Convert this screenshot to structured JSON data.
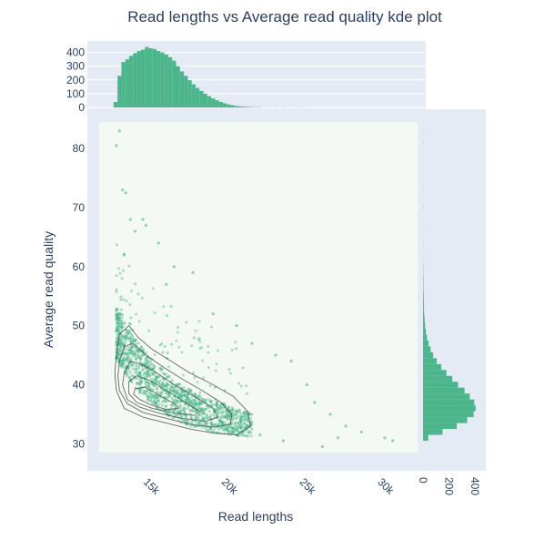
{
  "chart_data": {
    "type": "scatter",
    "title": "Read lengths vs Average read quality kde plot",
    "xlabel": "Read lengths",
    "ylabel": "Average read quality",
    "xlim": [
      12200,
      32600
    ],
    "ylim": [
      28.5,
      84.5
    ],
    "x_ticks": [
      15000,
      20000,
      25000,
      30000
    ],
    "x_tick_labels": [
      "15k",
      "20k",
      "25k",
      "30k"
    ],
    "y_ticks": [
      30,
      40,
      50,
      60,
      70,
      80
    ],
    "y_tick_labels": [
      "30",
      "40",
      "50",
      "60",
      "70",
      "80"
    ],
    "top_histogram": {
      "ylim": [
        0,
        470
      ],
      "ticks": [
        0,
        100,
        200,
        300,
        400
      ],
      "tick_labels": [
        "0",
        "100",
        "200",
        "300",
        "400"
      ],
      "bins": [
        [
          13250,
          40
        ],
        [
          13500,
          230
        ],
        [
          13750,
          330
        ],
        [
          14000,
          350
        ],
        [
          14250,
          375
        ],
        [
          14500,
          395
        ],
        [
          14750,
          410
        ],
        [
          15000,
          420
        ],
        [
          15250,
          440
        ],
        [
          15500,
          430
        ],
        [
          15750,
          425
        ],
        [
          16000,
          410
        ],
        [
          16250,
          400
        ],
        [
          16500,
          385
        ],
        [
          16750,
          365
        ],
        [
          17000,
          340
        ],
        [
          17250,
          300
        ],
        [
          17500,
          262
        ],
        [
          17750,
          230
        ],
        [
          18000,
          198
        ],
        [
          18250,
          168
        ],
        [
          18500,
          142
        ],
        [
          18750,
          120
        ],
        [
          19000,
          100
        ],
        [
          19250,
          82
        ],
        [
          19500,
          66
        ],
        [
          19750,
          52
        ],
        [
          20000,
          40
        ],
        [
          20250,
          30
        ],
        [
          20500,
          22
        ],
        [
          20750,
          16
        ],
        [
          21000,
          11
        ],
        [
          21250,
          8
        ],
        [
          21500,
          6
        ],
        [
          21750,
          4
        ],
        [
          22000,
          3
        ],
        [
          22250,
          2
        ],
        [
          22500,
          2
        ],
        [
          23000,
          1
        ],
        [
          23500,
          1
        ],
        [
          24000,
          1
        ],
        [
          25000,
          1
        ]
      ]
    },
    "right_histogram": {
      "xlim": [
        0,
        470
      ],
      "ticks": [
        0,
        200,
        400
      ],
      "tick_labels": [
        "0",
        "200",
        "400"
      ],
      "bins": [
        [
          31,
          40
        ],
        [
          32,
          150
        ],
        [
          33,
          260
        ],
        [
          34,
          340
        ],
        [
          35,
          390
        ],
        [
          36,
          405
        ],
        [
          37,
          395
        ],
        [
          38,
          360
        ],
        [
          39,
          320
        ],
        [
          40,
          270
        ],
        [
          41,
          225
        ],
        [
          42,
          180
        ],
        [
          43,
          140
        ],
        [
          44,
          105
        ],
        [
          45,
          78
        ],
        [
          46,
          58
        ],
        [
          47,
          42
        ],
        [
          48,
          30
        ],
        [
          49,
          22
        ],
        [
          50,
          16
        ],
        [
          51,
          12
        ],
        [
          52,
          9
        ],
        [
          53,
          7
        ],
        [
          54,
          6
        ],
        [
          55,
          5
        ],
        [
          56,
          4
        ],
        [
          57,
          3
        ],
        [
          58,
          3
        ],
        [
          59,
          2
        ],
        [
          60,
          2
        ],
        [
          62,
          1
        ],
        [
          64,
          1
        ],
        [
          67,
          1
        ],
        [
          70,
          1
        ],
        [
          74,
          1
        ],
        [
          81,
          1
        ],
        [
          83,
          1
        ]
      ]
    },
    "scatter_outliers": [
      [
        13500,
        83
      ],
      [
        13300,
        80.5
      ],
      [
        13700,
        73
      ],
      [
        13900,
        72.5
      ],
      [
        14200,
        68
      ],
      [
        15000,
        68
      ],
      [
        15200,
        67
      ],
      [
        14500,
        66
      ],
      [
        16000,
        64
      ],
      [
        13800,
        62
      ],
      [
        17000,
        60
      ],
      [
        18200,
        59
      ],
      [
        16500,
        57
      ],
      [
        19500,
        52
      ],
      [
        21000,
        50
      ],
      [
        22000,
        47
      ],
      [
        23500,
        45
      ],
      [
        24500,
        44
      ],
      [
        25500,
        40
      ],
      [
        26000,
        37
      ],
      [
        27000,
        35
      ],
      [
        28000,
        33
      ],
      [
        29000,
        32
      ],
      [
        30500,
        31
      ],
      [
        26500,
        29.5
      ],
      [
        24000,
        30.5
      ],
      [
        22500,
        31.5
      ],
      [
        20500,
        33
      ],
      [
        31000,
        30.5
      ],
      [
        27500,
        31
      ]
    ],
    "kde_contours": [
      [
        [
          13300,
          45
        ],
        [
          13500,
          48.5
        ],
        [
          14100,
          50
        ],
        [
          14700,
          48
        ],
        [
          15600,
          46
        ],
        [
          16800,
          44
        ],
        [
          18000,
          42
        ],
        [
          19500,
          40
        ],
        [
          20800,
          38
        ],
        [
          21700,
          35.5
        ],
        [
          21900,
          33
        ],
        [
          21000,
          31.5
        ],
        [
          19500,
          31.8
        ],
        [
          18000,
          32.5
        ],
        [
          16500,
          33.5
        ],
        [
          15000,
          34.5
        ],
        [
          13800,
          36
        ],
        [
          13300,
          39
        ],
        [
          13200,
          42
        ]
      ],
      [
        [
          13500,
          44
        ],
        [
          13800,
          46.5
        ],
        [
          14400,
          47
        ],
        [
          15200,
          45
        ],
        [
          16300,
          43
        ],
        [
          17500,
          41
        ],
        [
          18800,
          39
        ],
        [
          20000,
          37
        ],
        [
          20700,
          35
        ],
        [
          20600,
          33.3
        ],
        [
          19500,
          32.8
        ],
        [
          18000,
          33.3
        ],
        [
          16500,
          34.3
        ],
        [
          15000,
          35.3
        ],
        [
          14000,
          36.8
        ],
        [
          13500,
          39
        ],
        [
          13400,
          41.5
        ]
      ],
      [
        [
          13800,
          42
        ],
        [
          14200,
          44
        ],
        [
          14900,
          43.5
        ],
        [
          15900,
          42
        ],
        [
          17000,
          40
        ],
        [
          18300,
          38
        ],
        [
          19500,
          36
        ],
        [
          19800,
          34.5
        ],
        [
          19000,
          33.8
        ],
        [
          17500,
          34.3
        ],
        [
          16000,
          35.2
        ],
        [
          14800,
          36.2
        ],
        [
          14000,
          37.5
        ],
        [
          13700,
          40
        ]
      ],
      [
        [
          14100,
          40.5
        ],
        [
          14600,
          41.5
        ],
        [
          15400,
          40.8
        ],
        [
          16500,
          39
        ],
        [
          17700,
          37
        ],
        [
          18600,
          35.5
        ],
        [
          18300,
          34.8
        ],
        [
          17000,
          35.2
        ],
        [
          15600,
          36
        ],
        [
          14600,
          37
        ],
        [
          14100,
          38.5
        ]
      ],
      [
        [
          14500,
          39.3
        ],
        [
          15100,
          39.6
        ],
        [
          16000,
          38.3
        ],
        [
          17000,
          36.8
        ],
        [
          17300,
          36
        ],
        [
          16500,
          35.8
        ],
        [
          15500,
          36.6
        ],
        [
          14800,
          37.5
        ],
        [
          14400,
          38.4
        ]
      ]
    ]
  },
  "colors": {
    "accent": "#4db58c",
    "scatter": "#4db58c",
    "plot_bg": "#f4f9f3",
    "panel_bg": "#e5ebf5",
    "contour": "#3a3a3a",
    "text": "#2a3f5f"
  }
}
